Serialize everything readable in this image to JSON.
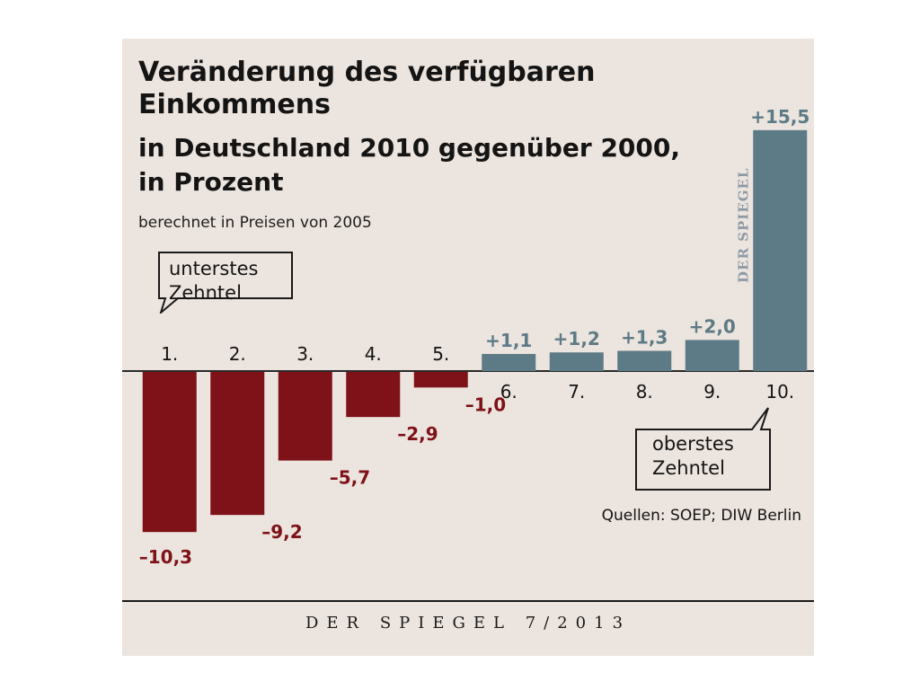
{
  "chart_data": {
    "type": "bar",
    "title": "Veränderung des verfügbaren Einkommens",
    "subtitle": "in Deutschland 2010 gegenüber 2000, in Prozent",
    "note": "berechnet in Preisen von 2005",
    "categories": [
      "1.",
      "2.",
      "3.",
      "4.",
      "5.",
      "6.",
      "7.",
      "8.",
      "9.",
      "10."
    ],
    "values": [
      -10.3,
      -9.2,
      -5.7,
      -2.9,
      -1.0,
      1.1,
      1.2,
      1.3,
      2.0,
      15.5
    ],
    "value_labels": [
      "–10,3",
      "–9,2",
      "–5,7",
      "–2,9",
      "–1,0",
      "+1,1",
      "+1,2",
      "+1,3",
      "+2,0",
      "+15,5"
    ],
    "ylim": [
      -10.3,
      15.5
    ],
    "grid": false,
    "colors": {
      "negative": "#7e1218",
      "positive": "#5d7b86",
      "axis": "#2a2a2a",
      "panel": "#ece4de"
    },
    "annotations": [
      {
        "text": "unterstes Zehntel",
        "target": "1."
      },
      {
        "text": "oberstes Zehntel",
        "target": "10."
      }
    ],
    "source": "Quellen: SOEP; DIW Berlin"
  },
  "watermark": "DER SPIEGEL",
  "footer": "DER SPIEGEL 7/2013"
}
